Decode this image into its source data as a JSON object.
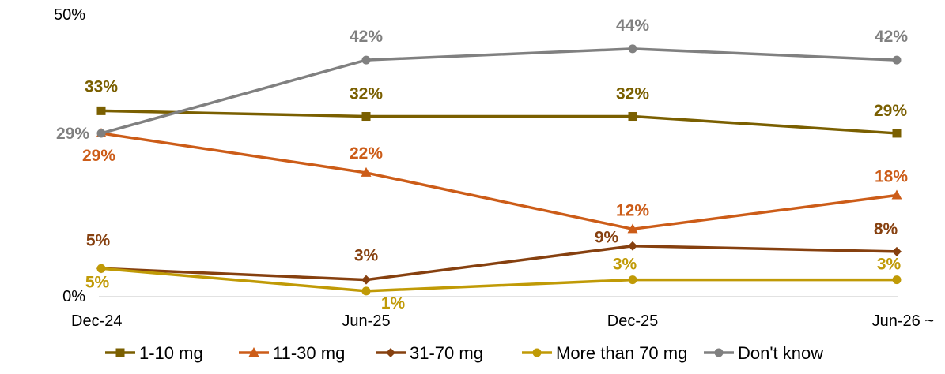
{
  "chart_data": {
    "type": "line",
    "categories": [
      "Dec-24",
      "Jun-25",
      "Dec-25",
      "Jun-26 ~"
    ],
    "ylim": [
      0,
      50
    ],
    "y_ticks": [
      "0%",
      "50%"
    ],
    "grid": false,
    "legend_position": "bottom",
    "series": [
      {
        "name": "1-10 mg",
        "values": [
          33,
          32,
          32,
          29
        ],
        "labels": [
          "33%",
          "32%",
          "32%",
          "29%"
        ],
        "color": "#7a5f00",
        "marker": "square"
      },
      {
        "name": "11-30 mg",
        "values": [
          29,
          22,
          12,
          18
        ],
        "labels": [
          "29%",
          "22%",
          "12%",
          "18%"
        ],
        "color": "#cc5c18",
        "marker": "triangle"
      },
      {
        "name": "31-70 mg",
        "values": [
          5,
          3,
          9,
          8
        ],
        "labels": [
          "5%",
          "3%",
          "9%",
          "8%"
        ],
        "color": "#86400f",
        "marker": "diamond"
      },
      {
        "name": "More than 70 mg",
        "values": [
          5,
          1,
          3,
          3
        ],
        "labels": [
          "5%",
          "1%",
          "3%",
          "3%"
        ],
        "color": "#c09a06",
        "marker": "circle"
      },
      {
        "name": "Don't know",
        "values": [
          29,
          42,
          44,
          42
        ],
        "labels": [
          "29%",
          "42%",
          "44%",
          "42%"
        ],
        "color": "#808080",
        "marker": "circle"
      }
    ]
  }
}
